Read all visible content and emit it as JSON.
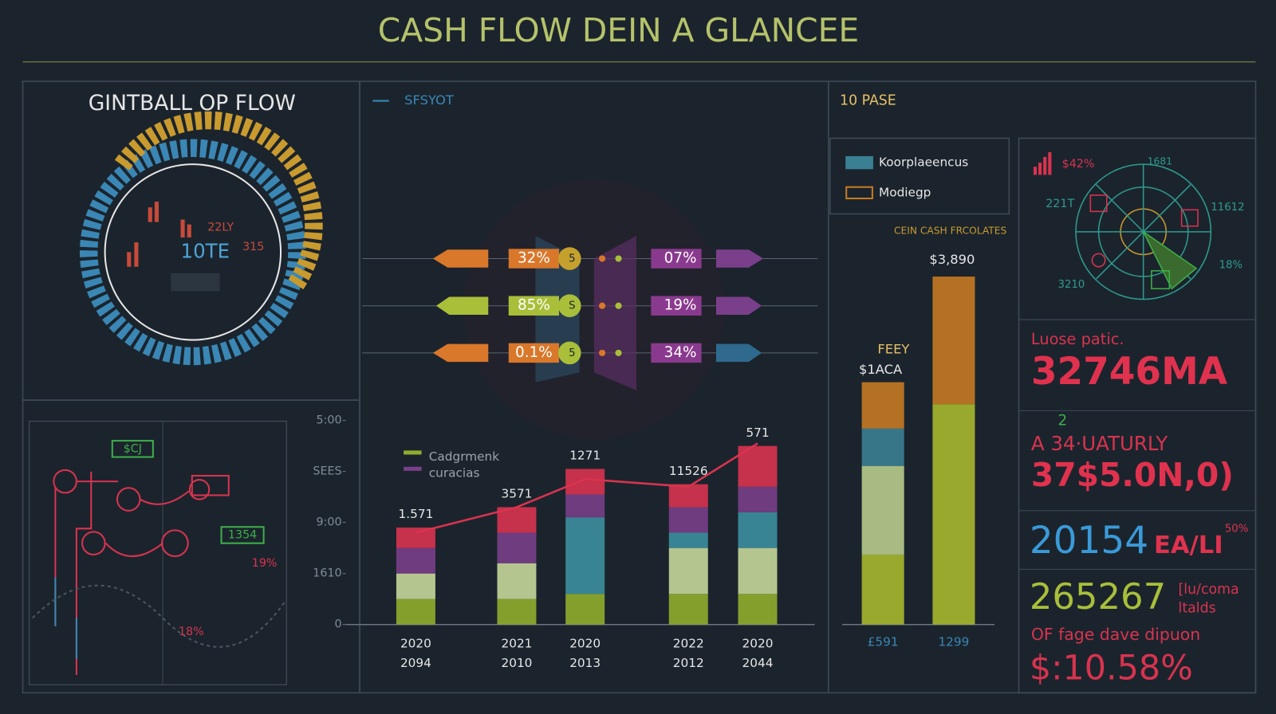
{
  "header": {
    "title": "CASH FLOW DEIN A GLANCEE"
  },
  "ring_panel": {
    "title": "GINTBALL OP FLOW",
    "labels": [
      "22LY",
      "10TE",
      "315"
    ]
  },
  "flow_panel": {
    "legend": "SFSYOT",
    "left_labels": [
      "32%",
      "85%",
      "0.1%"
    ],
    "mid_labels": [
      "5",
      "S",
      "5"
    ],
    "right_labels": [
      "07%",
      "19%",
      "34%"
    ]
  },
  "network_panel": {
    "labels": [
      "$CJ",
      "1354",
      "19%",
      "18%"
    ]
  },
  "chart_data": [
    {
      "type": "bar",
      "stacked": true,
      "categories": [
        "2020",
        "2021",
        "2020",
        "2022",
        "2020"
      ],
      "categories_sub": [
        "2094",
        "2010",
        "2013",
        "2012",
        "2044"
      ],
      "ylim": [
        0,
        4
      ],
      "yticks": [
        0,
        {
          "value": 1,
          "label": "1610"
        },
        {
          "value": 2,
          "label": "9:00"
        },
        {
          "value": 3,
          "label": "SEES"
        },
        {
          "value": 4,
          "label": "5:00"
        }
      ],
      "annotations": [
        "1.571",
        "3571",
        "1271",
        "11526",
        "571"
      ],
      "series": [
        {
          "name": "Cadgrmenk",
          "color": "#8fae2e",
          "values": [
            0.5,
            0.5,
            0.6,
            0.6,
            0.6
          ]
        },
        {
          "color": "#c5d79a",
          "values": [
            0.5,
            0.7,
            0,
            0.9,
            0.9
          ]
        },
        {
          "color": "#3d8fa0",
          "values": [
            0,
            0,
            1.5,
            0.3,
            0.7
          ]
        },
        {
          "name": "curacias",
          "color": "#7a3f8a",
          "values": [
            0.5,
            0.6,
            0.45,
            0.5,
            0.5
          ]
        },
        {
          "color": "#d9334f",
          "values": [
            0.4,
            0.5,
            0.5,
            0.45,
            0.8
          ]
        },
        {
          "type": "line",
          "color": "#d9334f",
          "values": [
            1.8,
            2.3,
            2.85,
            2.7,
            3.55
          ]
        }
      ]
    },
    {
      "type": "bar",
      "stacked": true,
      "title": "10 PASE",
      "subtitle": "CEIN CASH FRCOLATES",
      "categories": [
        "£591",
        "1299"
      ],
      "ylim": [
        0,
        4000
      ],
      "annotations": [
        "FEEY",
        "$1ACA",
        "$3,890"
      ],
      "series": [
        {
          "color": "#a7b82e",
          "values": [
            782,
            2463
          ]
        },
        {
          "color": "#b8cc8c",
          "values": [
            991,
            0
          ]
        },
        {
          "name": "Koorplaeencus",
          "color": "#3b7f93",
          "values": [
            418,
            0
          ]
        },
        {
          "name": "Modiegp",
          "color": "#c77a22",
          "values": [
            518,
            1427
          ]
        }
      ]
    }
  ],
  "radial_panel": {
    "labels": [
      "$42%",
      "1681",
      "221T",
      "11612",
      "18%",
      "3210"
    ]
  },
  "kpis": [
    {
      "label": "Luose patic.",
      "value": "32746MA"
    },
    {
      "note": "2",
      "label": "A 34·UATURLY",
      "value": "37$5.0N,0)"
    },
    {
      "value": "20154",
      "unit": "EA/LI",
      "note": "50%"
    },
    {
      "value": "265267",
      "unit": "[lu/coma",
      "unit2": "ltalds",
      "label": "OF fage dave dipuon",
      "value2": "$:10.58%"
    }
  ]
}
